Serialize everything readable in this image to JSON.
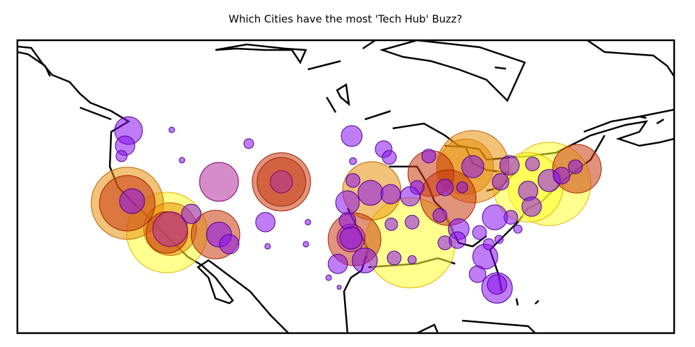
{
  "chart_data": {
    "type": "scatter",
    "title": "Which Cities have the most 'Tech Hub' Buzz?",
    "xlim": [
      -150,
      150
    ],
    "ylim": [
      -10,
      75
    ],
    "alpha": 0.55,
    "series": [
      {
        "color": "#ffff30",
        "edgecolor": "#e8b000",
        "x": [
          29.4,
          92.9,
          83.3,
          -81.7
        ],
        "y": [
          16.2,
          33.3,
          32.3,
          19.2
        ],
        "sizes": [
          65,
          60,
          50,
          58
        ]
      },
      {
        "color": "#e8900a",
        "edgecolor": "#c06000",
        "x": [
          -99.8,
          54.8,
          58,
          -80.2,
          11.9
        ],
        "y": [
          27.7,
          38.3,
          38.3,
          20.2,
          31.3
        ],
        "sizes": [
          52,
          40,
          52,
          38,
          42
        ]
      },
      {
        "color": "#c83a10",
        "edgecolor": "#a02000",
        "x": [
          -99.8,
          -29.4,
          -29.4,
          -59.5,
          105.6,
          38.9,
          46.8,
          4,
          -81.7
        ],
        "y": [
          27.7,
          33.9,
          33.9,
          18.6,
          37.7,
          36.3,
          29.3,
          17.2,
          19.2
        ],
        "sizes": [
          40,
          42,
          35,
          35,
          35,
          33,
          40,
          38,
          30
        ]
      },
      {
        "color": "#b0309a",
        "edgecolor": "#800070",
        "x": [
          -57.9,
          -29.4,
          -80.2,
          2.4
        ],
        "y": [
          33.9,
          33.9,
          20.2,
          17.6
        ],
        "sizes": [
          28,
          16,
          25,
          20
        ]
      },
      {
        "color": "#8a10f0",
        "edgecolor": "#4a0090",
        "x": [
          -99.2,
          -100.8,
          -102.4,
          -97.6,
          -70.6,
          -57.9,
          -53.2,
          -36.7,
          -44.3,
          -74.8,
          -79.5,
          -17.3,
          -35.7,
          -18.2,
          2.7,
          17.3,
          19.9,
          3.3,
          3.3,
          0.8,
          11.3,
          20.5,
          29.4,
          0.8,
          2.4,
          -3.6,
          8.7,
          20.8,
          30.3,
          22.1,
          30.3,
          -7.8,
          -3,
          37.9,
          32.6,
          45.3,
          53.2,
          43,
          51.6,
          58,
          61.1,
          70.7,
          74.8,
          85.3,
          83.3,
          84.9,
          75.4,
          68.1,
          78.6,
          70,
          63.7,
          65.3,
          60.2,
          69.1,
          69.1,
          92.9,
          98.6,
          104.9,
          45.3,
          51
        ],
        "y": [
          48.8,
          44.4,
          41.4,
          28.3,
          24.6,
          18.6,
          15.8,
          22.2,
          45,
          40.2,
          49,
          22.2,
          15.2,
          15.8,
          47.2,
          43.4,
          41,
          39.9,
          34.3,
          27.9,
          30.7,
          30.3,
          29.7,
          22.6,
          17.6,
          10.1,
          11.1,
          21.6,
          22.2,
          11.8,
          11.3,
          6.1,
          3.3,
          41.4,
          32.3,
          32.3,
          32.3,
          24.2,
          20.2,
          38.3,
          19.2,
          33.9,
          38.7,
          39.1,
          31.3,
          26.7,
          23.6,
          23.6,
          20.2,
          17.2,
          12.2,
          15.8,
          7.1,
          3.1,
          4.1,
          34.3,
          35.7,
          38.3,
          16.2,
          17
        ],
        "sizes": [
          20,
          14,
          8,
          18,
          14,
          18,
          14,
          14,
          7,
          4,
          4,
          4,
          4,
          4,
          15,
          12,
          10,
          5,
          10,
          17,
          18,
          14,
          14,
          12,
          16,
          14,
          18,
          9,
          10,
          10,
          6,
          4,
          3,
          10,
          10,
          12,
          8,
          10,
          15,
          16,
          10,
          12,
          14,
          10,
          14,
          14,
          10,
          18,
          6,
          6,
          18,
          8,
          12,
          22,
          14,
          16,
          12,
          10,
          10,
          12
        ]
      }
    ]
  }
}
